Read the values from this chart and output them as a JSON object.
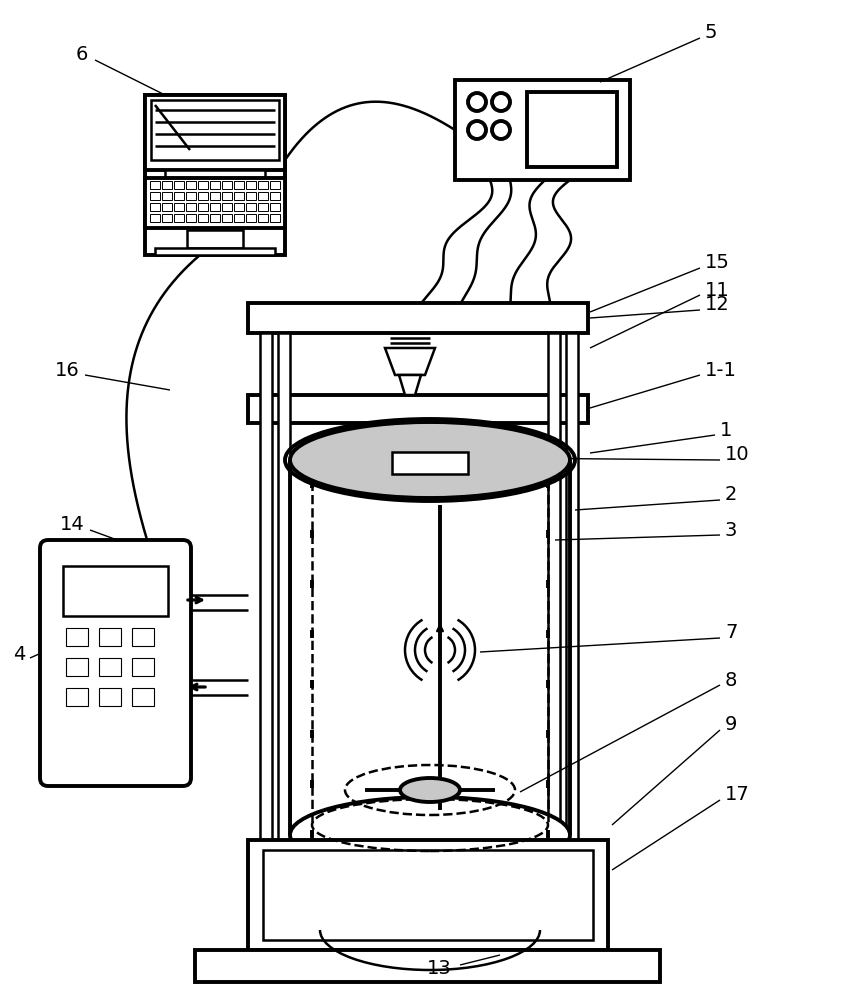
{
  "bg_color": "#ffffff",
  "lc": "#000000",
  "gray": "#c8c8c8",
  "lw": 1.8,
  "lw2": 2.8,
  "lw_label": 1.0,
  "fs": 14
}
